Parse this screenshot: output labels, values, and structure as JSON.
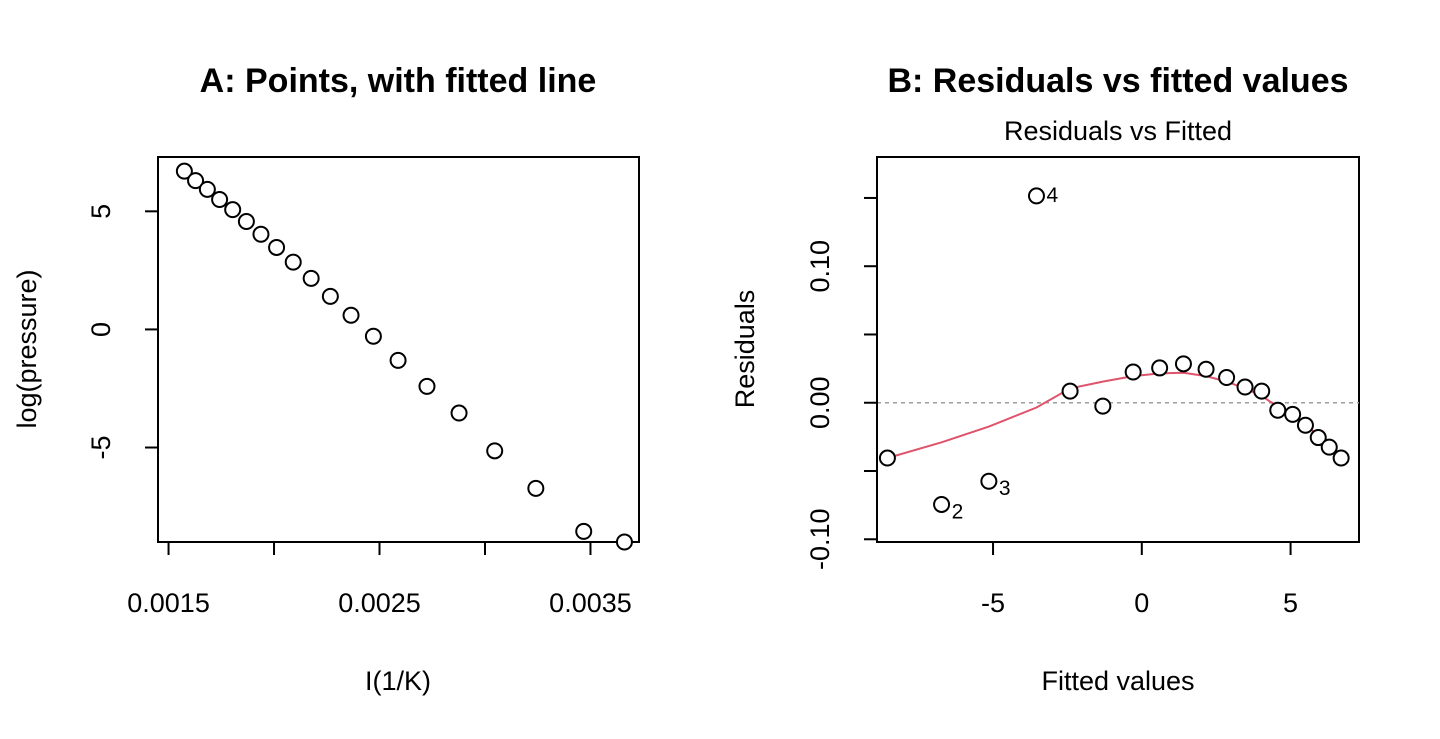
{
  "chart_data": [
    {
      "type": "scatter",
      "title": "A: Points, with fitted line",
      "xlabel": "I(1/K)",
      "ylabel": "log(pressure)",
      "xlim": [
        0.00145,
        0.00373
      ],
      "ylim": [
        -9.0,
        7.3
      ],
      "xticks": [
        0.0015,
        0.002,
        0.0025,
        0.003,
        0.0035
      ],
      "xtick_labels": [
        "0.0015",
        "",
        "0.0025",
        "",
        "0.0035"
      ],
      "yticks": [
        -5,
        0,
        5
      ],
      "ytick_labels": [
        "-5",
        "0",
        "5"
      ],
      "series": [
        {
          "x": [
            0.001575,
            0.001628,
            0.001684,
            0.001742,
            0.001804,
            0.001869,
            0.001938,
            0.002012,
            0.002091,
            0.002176,
            0.002267,
            0.002365,
            0.002471,
            0.002588,
            0.002725,
            0.002877,
            0.003046,
            0.003241,
            0.003468,
            0.003661
          ],
          "y": [
            6.7,
            6.3,
            5.93,
            5.5,
            5.07,
            4.57,
            4.03,
            3.47,
            2.85,
            2.16,
            1.4,
            0.6,
            -0.29,
            -1.31,
            -2.41,
            -3.54,
            -5.14,
            -6.73,
            -8.55,
            -9.0
          ]
        }
      ]
    },
    {
      "type": "scatter",
      "title": "B: Residuals vs fitted values",
      "subtitle": "Residuals vs Fitted",
      "xlabel": "Fitted values",
      "ylabel": "Residuals",
      "xlim": [
        -8.9,
        7.3
      ],
      "ylim": [
        -0.102,
        0.18
      ],
      "xticks": [
        -5,
        0,
        5
      ],
      "xtick_labels": [
        "-5",
        "0",
        "5"
      ],
      "yticks": [
        -0.1,
        -0.05,
        0.0,
        0.05,
        0.1,
        0.15
      ],
      "ytick_labels": [
        "-0.10",
        "",
        "0.00",
        "",
        "0.10",
        ""
      ],
      "zero_line": true,
      "series": [
        {
          "x": [
            -8.55,
            -6.73,
            -5.14,
            -3.54,
            -2.41,
            -1.31,
            -0.29,
            0.6,
            1.4,
            2.16,
            2.85,
            3.47,
            4.03,
            4.57,
            5.07,
            5.5,
            5.93,
            6.3,
            6.7
          ],
          "y": [
            -0.0405,
            -0.0745,
            -0.0575,
            0.1515,
            0.0085,
            -0.0025,
            0.0225,
            0.0255,
            0.0285,
            0.0245,
            0.0185,
            0.0115,
            0.0085,
            -0.0055,
            -0.0085,
            -0.0165,
            -0.0255,
            -0.0325,
            -0.0405
          ],
          "labels": {
            "2": "2",
            "3": "3",
            "4": "4"
          }
        },
        {
          "type": "line",
          "x": [
            -8.55,
            -6.73,
            -5.14,
            -3.54,
            -2.41,
            -1.31,
            -0.29,
            0.6,
            1.4,
            2.16,
            2.85,
            3.47,
            4.03,
            4.57,
            5.07,
            5.5,
            5.93,
            6.3,
            6.7
          ],
          "y": [
            -0.0405,
            -0.029,
            -0.0175,
            -0.0035,
            0.0105,
            0.0155,
            0.0195,
            0.0215,
            0.022,
            0.0195,
            0.0155,
            0.0105,
            0.005,
            -0.003,
            -0.009,
            -0.016,
            -0.024,
            -0.032,
            -0.0405
          ],
          "color": "#df536b"
        }
      ]
    }
  ]
}
